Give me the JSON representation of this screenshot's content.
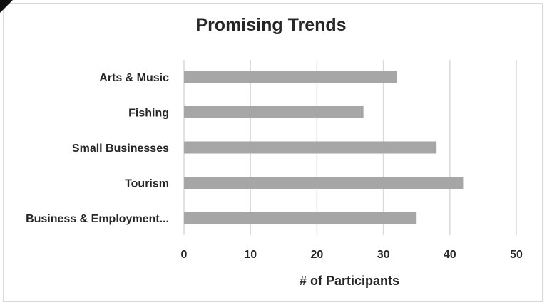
{
  "chart_data": {
    "type": "bar",
    "orientation": "horizontal",
    "title": "Promising Trends",
    "xlabel": "# of Participants",
    "ylabel": "",
    "categories": [
      "Arts & Music",
      "Fishing",
      "Small Businesses",
      "Tourism",
      "Business & Employment..."
    ],
    "values": [
      32,
      27,
      38,
      42,
      35
    ],
    "xlim": [
      0,
      50
    ],
    "xticks": [
      0,
      10,
      20,
      30,
      40,
      50
    ],
    "grid": true,
    "legend": "none",
    "bar_color": "#a6a6a6"
  }
}
